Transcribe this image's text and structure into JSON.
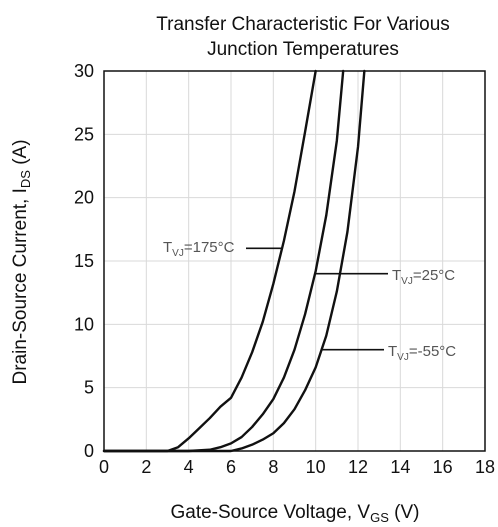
{
  "chart_data": {
    "type": "line",
    "title_lines": [
      "Transfer Characteristic For Various",
      "Junction Temperatures"
    ],
    "xlabel": {
      "text": "Gate-Source Voltage, V",
      "sub": "GS",
      "unit": " (V)"
    },
    "ylabel": {
      "text": "Drain-Source Current, I",
      "sub": "DS",
      "unit": " (A)"
    },
    "xlim": [
      0,
      18
    ],
    "ylim": [
      0,
      30
    ],
    "xticks": [
      0,
      2,
      4,
      6,
      8,
      10,
      12,
      14,
      16,
      18
    ],
    "yticks": [
      0,
      5,
      10,
      15,
      20,
      25,
      30
    ],
    "grid": true,
    "series": [
      {
        "name": "T_VJ=175°C",
        "label": {
          "main": "T",
          "sub": "VJ",
          "rest": "=175°C"
        },
        "x": [
          0,
          1,
          2,
          3,
          3.5,
          4,
          4.5,
          5,
          5.5,
          6,
          6.5,
          7,
          7.5,
          8,
          8.5,
          9,
          9.5,
          10
        ],
        "y": [
          0,
          0,
          0,
          0,
          0.3,
          1,
          1.8,
          2.6,
          3.5,
          4.2,
          5.8,
          7.8,
          10.2,
          13.2,
          16.6,
          20.5,
          25.2,
          30
        ]
      },
      {
        "name": "T_VJ=25°C",
        "label": {
          "main": "T",
          "sub": "VJ",
          "rest": "=25°C"
        },
        "x": [
          0,
          2,
          4,
          5,
          5.5,
          6,
          6.5,
          7,
          7.5,
          8,
          8.5,
          9,
          9.5,
          10,
          10.5,
          11,
          11.3
        ],
        "y": [
          0,
          0,
          0,
          0.1,
          0.3,
          0.6,
          1.1,
          1.9,
          2.9,
          4.1,
          5.8,
          8,
          10.8,
          14.2,
          18.6,
          24.5,
          30
        ]
      },
      {
        "name": "T_VJ=-55°C",
        "label": {
          "main": "T",
          "sub": "VJ",
          "rest": "=-55°C"
        },
        "x": [
          0,
          2,
          4,
          6,
          6.5,
          7,
          7.5,
          8,
          8.5,
          9,
          9.5,
          10,
          10.5,
          11,
          11.5,
          12,
          12.3
        ],
        "y": [
          0,
          0,
          0,
          0,
          0.2,
          0.5,
          0.9,
          1.4,
          2.2,
          3.3,
          4.8,
          6.6,
          9.1,
          12.6,
          17.3,
          24,
          30
        ]
      }
    ]
  }
}
